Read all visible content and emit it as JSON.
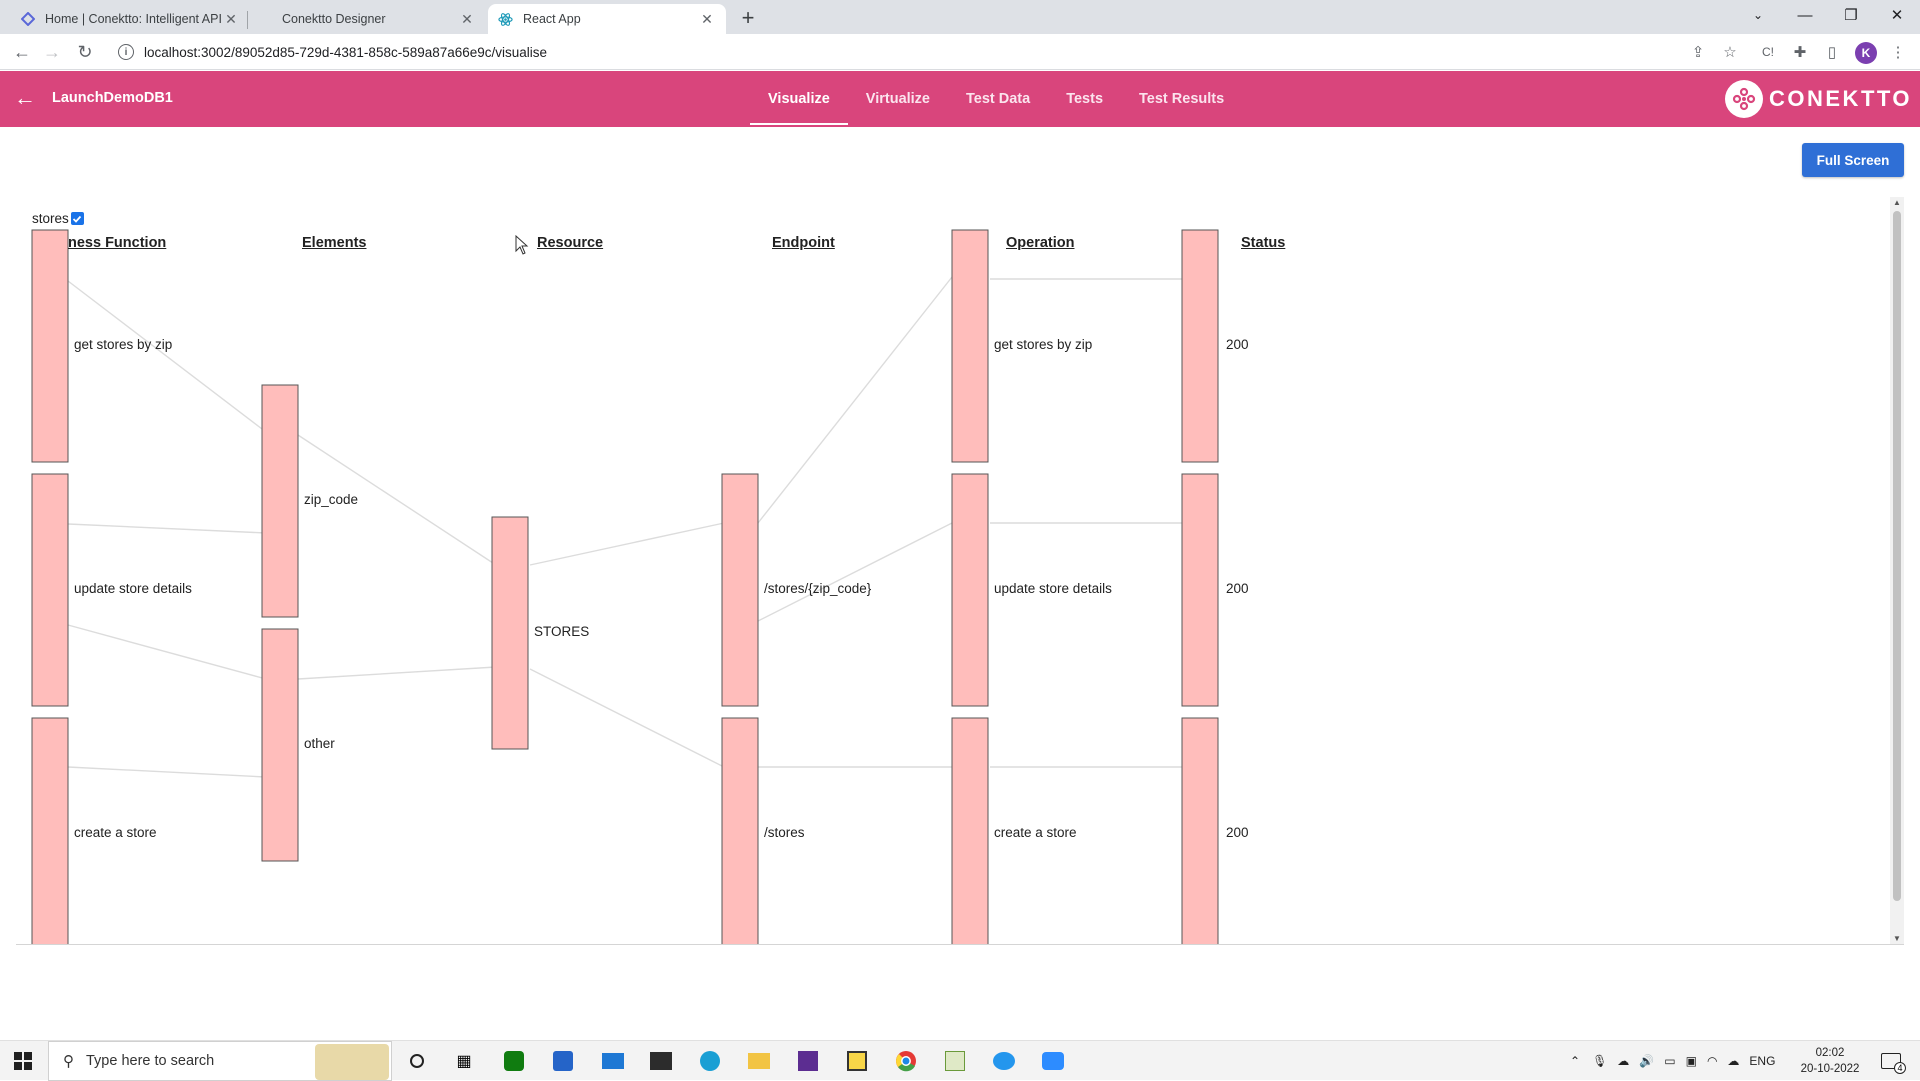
{
  "browser": {
    "tabs": [
      {
        "title": "Home | Conektto: Intelligent API",
        "active": false
      },
      {
        "title": "Conektto Designer",
        "active": false
      },
      {
        "title": "React App",
        "active": true
      }
    ],
    "url": "localhost:3002/89052d85-729d-4381-858c-589a87a66e9c/visualise",
    "profile_initial": "K"
  },
  "app": {
    "project_name": "LaunchDemoDB1",
    "nav_tabs": [
      "Visualize",
      "Virtualize",
      "Test Data",
      "Tests",
      "Test Results"
    ],
    "active_tab": "Visualize",
    "brand": "CONEKTTO",
    "brand_color": "#d9457c",
    "full_screen_label": "Full Screen"
  },
  "visualization": {
    "filter_label": "stores",
    "filter_checked": true,
    "columns": [
      "ness Function",
      "Elements",
      "Resource",
      "Endpoint",
      "Operation",
      "Status"
    ],
    "node_color": "#ffbdbb",
    "nodes": {
      "business_function": [
        "get stores by zip",
        "update store details",
        "create a store"
      ],
      "elements": [
        "zip_code",
        "other"
      ],
      "resource": [
        "STORES"
      ],
      "endpoint": [
        "/stores/{zip_code}",
        "/stores"
      ],
      "operation": [
        "get stores by zip",
        "update store details",
        "create a store"
      ],
      "status": [
        "200",
        "200",
        "200"
      ]
    }
  },
  "taskbar": {
    "search_placeholder": "Type here to search",
    "language": "ENG",
    "time": "02:02",
    "date": "20-10-2022",
    "notification_count": "4"
  }
}
